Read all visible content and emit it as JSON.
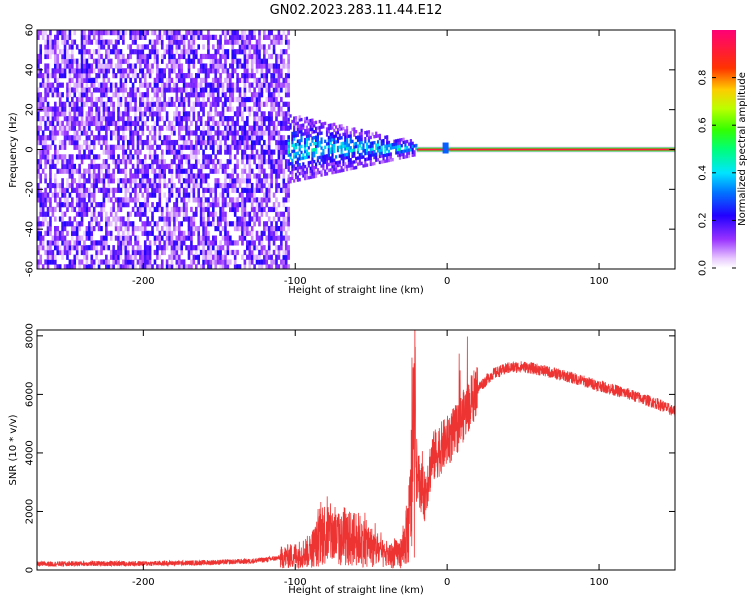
{
  "title": "GN02.2023.283.11.44.E12",
  "chart_data": [
    {
      "type": "heatmap",
      "xlabel": "Height of straight line (km)",
      "ylabel": "Frequency (Hz)",
      "xlim": [
        -270,
        150
      ],
      "ylim": [
        -60,
        60
      ],
      "xticks": [
        -200,
        -100,
        0,
        100
      ],
      "xtick_labels": [
        "-200",
        "-100",
        "0",
        "100"
      ],
      "yticks": [
        -60,
        -40,
        -20,
        0,
        20,
        40,
        60
      ],
      "ytick_labels": [
        "-60",
        "-40",
        "-20",
        "0",
        "20",
        "40",
        "60"
      ],
      "colorbar": {
        "label": "Normalized spectral amplitude",
        "range": [
          0,
          1
        ],
        "ticks": [
          0.0,
          0.2,
          0.4,
          0.6,
          0.8
        ],
        "tick_labels": [
          "0.0",
          "0.2",
          "0.4",
          "0.6",
          "0.8"
        ]
      },
      "regions": [
        {
          "x": [
            -270,
            -105
          ],
          "freq": [
            -60,
            60
          ],
          "amplitude": "0.05-0.2",
          "note": "broadband noise"
        },
        {
          "x": [
            -105,
            -20
          ],
          "freq": [
            -15,
            15
          ],
          "amplitude": "0.1-0.45",
          "note": "narrowing band"
        },
        {
          "x": [
            -20,
            150
          ],
          "freq": [
            -1,
            1
          ],
          "amplitude": "0.9-1.0",
          "note": "narrow DC line"
        }
      ]
    },
    {
      "type": "line",
      "xlabel": "Height of straight line (km)",
      "ylabel": "SNR (10 * v/v)",
      "xlim": [
        -270,
        150
      ],
      "ylim": [
        0,
        8200
      ],
      "xticks": [
        -200,
        -100,
        0,
        100
      ],
      "xtick_labels": [
        "-200",
        "-100",
        "0",
        "100"
      ],
      "yticks": [
        0,
        2000,
        4000,
        6000,
        8000
      ],
      "ytick_labels": [
        "0",
        "2000",
        "4000",
        "6000",
        "8000"
      ],
      "series": [
        {
          "color": "#ee3333",
          "x": [
            -270,
            -240,
            -200,
            -160,
            -130,
            -120,
            -110,
            -100,
            -90,
            -80,
            -70,
            -60,
            -50,
            -40,
            -30,
            -25,
            -22,
            -20,
            -18,
            -15,
            -10,
            -5,
            0,
            5,
            10,
            20,
            30,
            40,
            50,
            60,
            80,
            100,
            120,
            140,
            150
          ],
          "y": [
            200,
            220,
            220,
            250,
            300,
            350,
            420,
            500,
            650,
            1300,
            1000,
            1100,
            800,
            450,
            600,
            1500,
            4200,
            3400,
            3000,
            2500,
            3800,
            4100,
            4400,
            4700,
            5200,
            6200,
            6700,
            6900,
            6950,
            6850,
            6600,
            6300,
            6000,
            5650,
            5400
          ]
        }
      ]
    }
  ]
}
